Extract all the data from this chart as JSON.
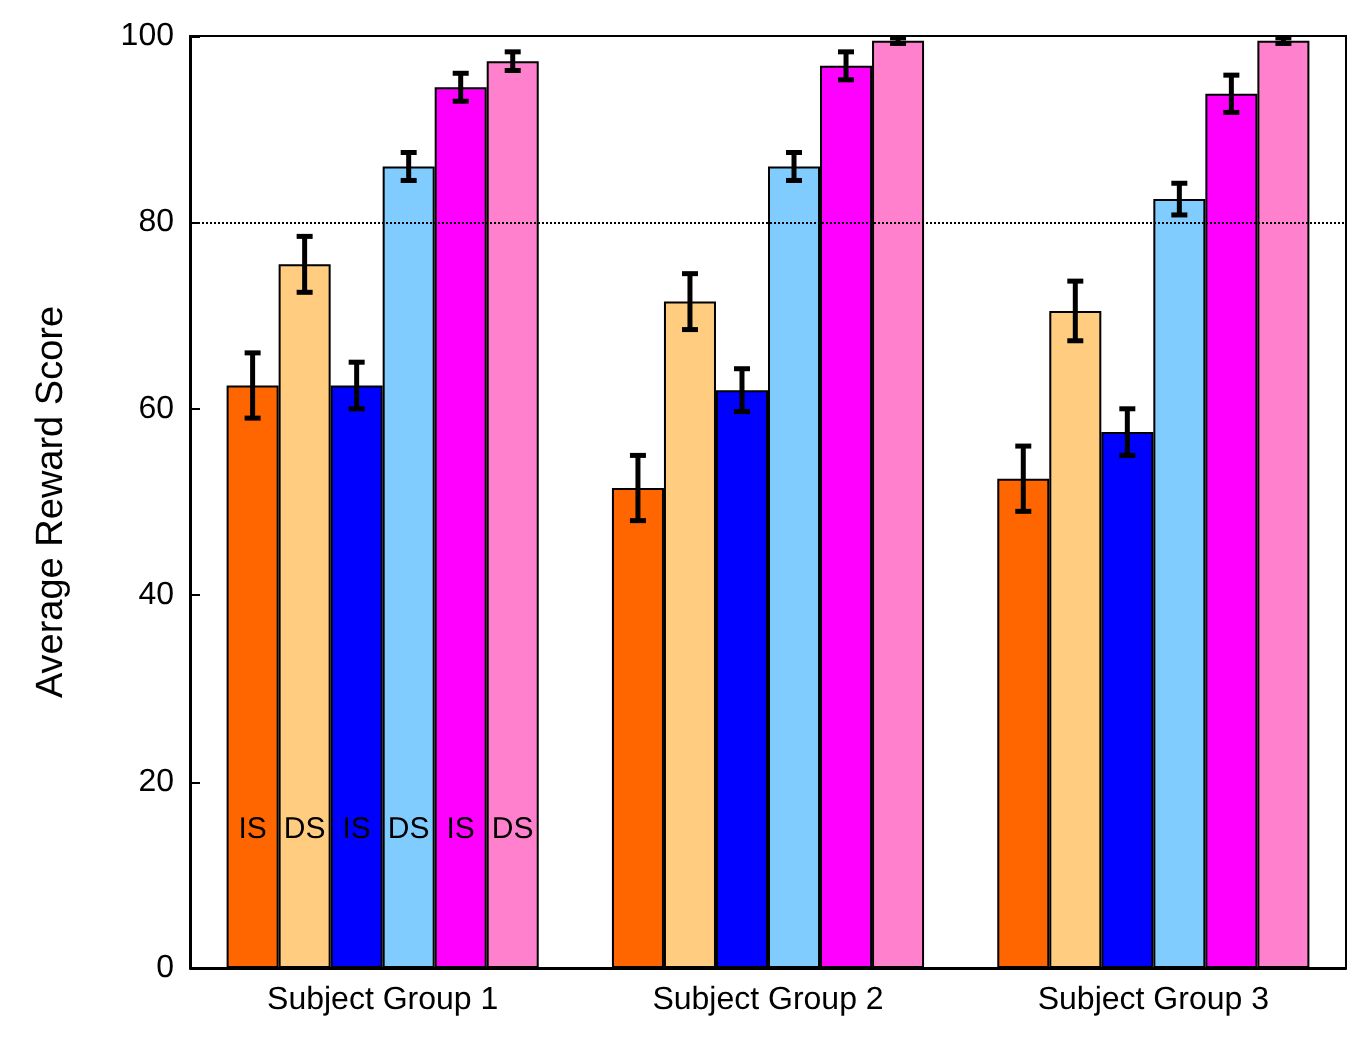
{
  "chart_data": {
    "type": "bar",
    "ylabel": "Average Reward Score",
    "categories": [
      "Subject Group 1",
      "Subject Group 2",
      "Subject Group 3"
    ],
    "series": [
      {
        "name": "IS",
        "color": "#ff6600",
        "values": [
          62.5,
          51.5,
          52.5
        ],
        "errors": [
          3.5,
          3.5,
          3.5
        ]
      },
      {
        "name": "DS",
        "color": "#ffcc80",
        "values": [
          75.5,
          71.5,
          70.5
        ],
        "errors": [
          3,
          3,
          3.2
        ]
      },
      {
        "name": "IS",
        "color": "#0000ff",
        "values": [
          62.5,
          62,
          57.5
        ],
        "errors": [
          2.5,
          2.3,
          2.5
        ]
      },
      {
        "name": "DS",
        "color": "#80ccff",
        "values": [
          86,
          86,
          82.5
        ],
        "errors": [
          1.5,
          1.5,
          1.7
        ]
      },
      {
        "name": "IS",
        "color": "#ff00ff",
        "values": [
          94.5,
          96.8,
          93.8
        ],
        "errors": [
          1.5,
          1.5,
          2
        ]
      },
      {
        "name": "DS",
        "color": "#ff80cc",
        "values": [
          97.3,
          99.5,
          99.5
        ],
        "errors": [
          1,
          0.3,
          0.3
        ]
      }
    ],
    "ylim": [
      0,
      100
    ],
    "yticks": [
      0,
      20,
      40,
      60,
      80,
      100
    ],
    "grid": false,
    "legend": false,
    "ref_lines": [
      {
        "axis": "y",
        "value": 80,
        "color": "#000000",
        "line_style": "dotted"
      }
    ]
  }
}
